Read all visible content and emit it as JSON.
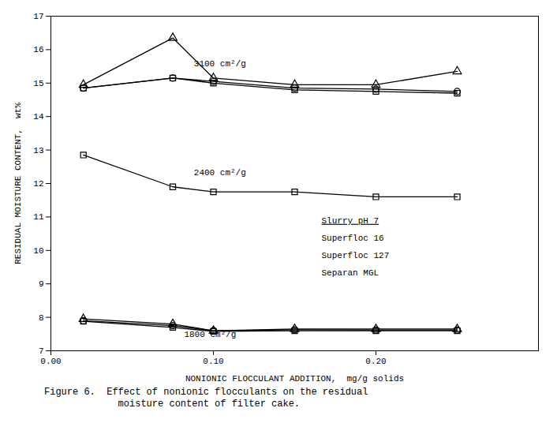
{
  "chart_data": {
    "type": "line",
    "xlabel": "NONIONIC FLOCCULANT ADDITION,  mg/g solids",
    "ylabel": "RESIDUAL MOISTURE CONTENT,  wt%",
    "xlim": [
      0.0,
      0.3
    ],
    "ylim": [
      7,
      17
    ],
    "xticks": [
      {
        "value": 0.0,
        "label": "0.00"
      },
      {
        "value": 0.1,
        "label": "0.10"
      },
      {
        "value": 0.2,
        "label": "0.20"
      }
    ],
    "yticks": [
      7,
      8,
      9,
      10,
      11,
      12,
      13,
      14,
      15,
      16,
      17
    ],
    "grid": false,
    "color": "black",
    "series": [
      {
        "marker": "triangle",
        "x": [
          0.02,
          0.075,
          0.1,
          0.15,
          0.2,
          0.25
        ],
        "values": [
          14.95,
          16.35,
          15.15,
          14.95,
          14.95,
          15.35
        ]
      },
      {
        "marker": "circle",
        "x": [
          0.02,
          0.075,
          0.1,
          0.15,
          0.2,
          0.25
        ],
        "values": [
          14.85,
          15.15,
          15.05,
          14.85,
          14.82,
          14.75
        ]
      },
      {
        "marker": "square",
        "x": [
          0.02,
          0.075,
          0.1,
          0.15,
          0.2,
          0.25
        ],
        "values": [
          14.85,
          15.15,
          15.0,
          14.8,
          14.75,
          14.7
        ]
      },
      {
        "marker": "square",
        "x": [
          0.02,
          0.075,
          0.1,
          0.15,
          0.2,
          0.25
        ],
        "values": [
          12.85,
          11.9,
          11.75,
          11.75,
          11.6,
          11.6
        ]
      },
      {
        "marker": "triangle",
        "x": [
          0.02,
          0.075,
          0.1,
          0.15,
          0.2,
          0.25
        ],
        "values": [
          7.95,
          7.8,
          7.6,
          7.65,
          7.65,
          7.65
        ]
      },
      {
        "marker": "circle",
        "x": [
          0.02,
          0.075,
          0.1,
          0.15,
          0.2,
          0.25
        ],
        "values": [
          7.9,
          7.75,
          7.6,
          7.63,
          7.62,
          7.62
        ]
      },
      {
        "marker": "square",
        "x": [
          0.02,
          0.075,
          0.1,
          0.15,
          0.2,
          0.25
        ],
        "values": [
          7.88,
          7.7,
          7.58,
          7.6,
          7.6,
          7.6
        ]
      }
    ],
    "annotations": [
      {
        "text": "3100 cm²/g",
        "x": 0.088,
        "y": 15.5
      },
      {
        "text": "2400 cm²/g",
        "x": 0.088,
        "y": 12.25
      },
      {
        "text": "1800 cm²/g",
        "x": 0.082,
        "y": 7.42
      }
    ],
    "legend_lines": [
      "Slurry pH 7",
      "Superfloc 16",
      "Superfloc 127",
      "Separan MGL"
    ],
    "caption": [
      "Figure 6.  Effect of nonionic flocculants on the residual",
      "             moisture content of filter cake."
    ]
  }
}
